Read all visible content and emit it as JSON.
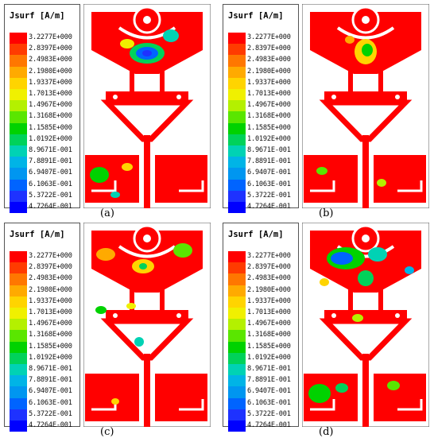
{
  "legend": {
    "title": "Jsurf [A/m]",
    "values": [
      "3.2277E+000",
      "2.8397E+000",
      "2.4983E+000",
      "2.1980E+000",
      "1.9337E+000",
      "1.7013E+000",
      "1.4967E+000",
      "1.3168E+000",
      "1.1585E+000",
      "1.0192E+000",
      "8.9671E-001",
      "7.8891E-001",
      "6.9407E-001",
      "6.1063E-001",
      "5.3722E-001",
      "4.7264E-001"
    ],
    "colors": [
      "#ff0000",
      "#ff3b00",
      "#ff7700",
      "#ffaa00",
      "#ffd400",
      "#f0f000",
      "#b4f000",
      "#5ae600",
      "#00d200",
      "#00d25a",
      "#00d2b4",
      "#00b4e6",
      "#0096f0",
      "#0064ff",
      "#1e32ff",
      "#0000ff"
    ]
  },
  "panels": [
    {
      "label": "(a)"
    },
    {
      "label": "(b)"
    },
    {
      "label": "(c)"
    },
    {
      "label": "(d)"
    }
  ]
}
